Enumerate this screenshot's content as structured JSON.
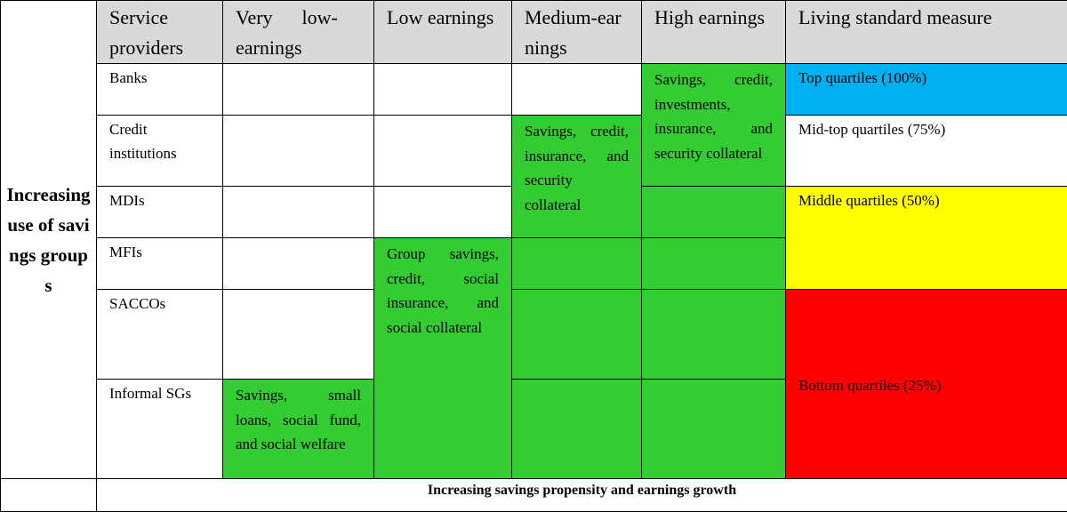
{
  "side_label": "Increasing use of savings groups",
  "footer_label": "Increasing savings propensity and earnings growth",
  "headers": {
    "service_providers": "Service providers",
    "very_low": "Very low-earnings",
    "low": "Low earnings",
    "medium": "Medium-earnings",
    "high": "High earnings",
    "living_standard": "Living standard measure"
  },
  "providers": [
    "Banks",
    "Credit institutions",
    "MDIs",
    "MFIs",
    "SACCOs",
    "Informal SGs"
  ],
  "services": {
    "very_low": "Savings, small loans, social fund, and social welfare",
    "low": "Group savings, credit, social insurance, and social collateral",
    "medium": "Savings, credit, insurance, and security collateral",
    "high": "Savings, credit, investments, insurance, and security collateral"
  },
  "living_standard": {
    "top": "Top quartiles (100%)",
    "mid_top": "Mid-top quartiles (75%)",
    "middle": "Middle quartiles (50%)",
    "bottom": "Bottom quartiles (25%)"
  },
  "colors": {
    "header": "#d9d9d9",
    "green": "#33cc33",
    "top": "#00b0f0",
    "middle": "#ffff00",
    "bottom": "#ff0000"
  }
}
